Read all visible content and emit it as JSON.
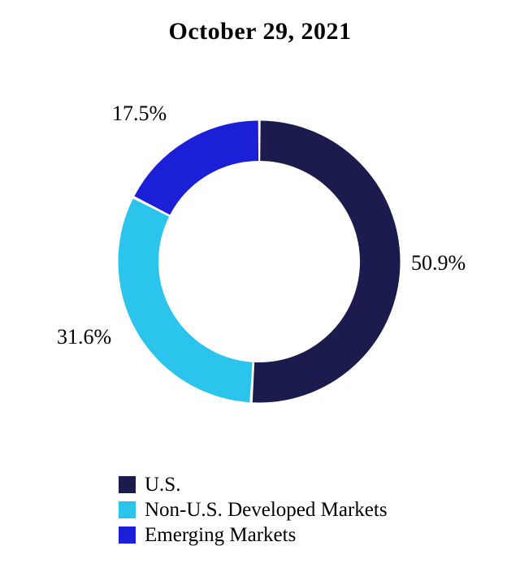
{
  "page": {
    "background_color": "#FFFFFF"
  },
  "title": "October 29, 2021",
  "chart_data": {
    "type": "pie",
    "variant": "donut",
    "title": "October 29, 2021",
    "direction": "clockwise",
    "start_angle_deg": 0,
    "donut_hole_ratio": 0.71,
    "legend_position": "bottom-left",
    "slice_gap_color": "#FFFFFF",
    "slices": [
      {
        "label": "U.S.",
        "value": 50.9,
        "display": "50.9%",
        "color": "#1B1B4D",
        "label_side": "right"
      },
      {
        "label": "Non-U.S. Developed Markets",
        "value": 31.6,
        "display": "31.6%",
        "color": "#2AC4EC",
        "label_side": "left"
      },
      {
        "label": "Emerging Markets",
        "value": 17.5,
        "display": "17.5%",
        "color": "#1B1FD8",
        "label_side": "top-left"
      }
    ]
  }
}
